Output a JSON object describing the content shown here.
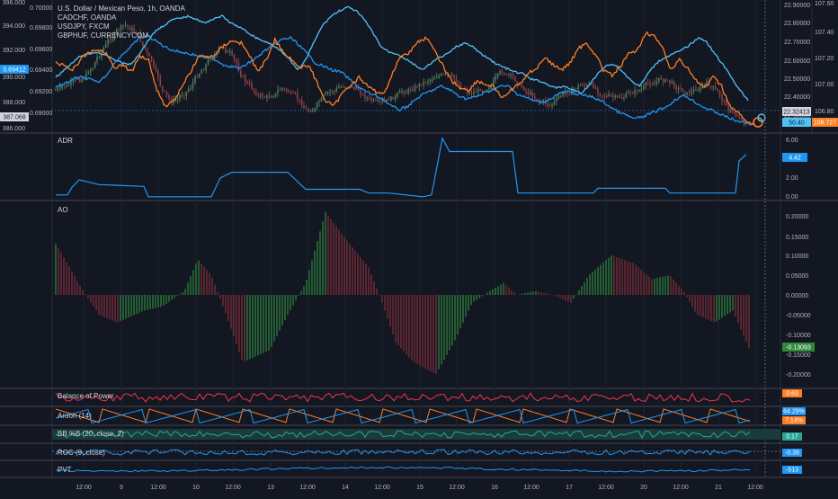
{
  "legend": {
    "lines": [
      "U.S. Dollar / Mexican Peso, 1h, OANDA",
      "CADCHF, OANDA",
      "USDJPY, FXCM",
      "GBPHUF, CURRENCYCOM"
    ]
  },
  "axes": {
    "left_outer": [
      "396.000",
      "394.000",
      "392.000",
      "390.000",
      "388.000",
      "386.000"
    ],
    "left_inner": [
      "0.70000",
      "0.69800",
      "0.69600",
      "0.69400",
      "0.69200",
      "0.69000"
    ],
    "right_inner": [
      "22.90000",
      "22.80000",
      "22.70000",
      "22.60000",
      "22.50000",
      "22.40000",
      "22.30000"
    ],
    "right_outer": [
      "107.60",
      "107.40",
      "107.20",
      "107.00",
      "106.80"
    ],
    "badges": {
      "left_blue": "0.69412",
      "left_gray": "387.068",
      "right_mid": "22.32413",
      "right_low": "50.40",
      "right_orange": "106.727"
    }
  },
  "panes": {
    "adr": {
      "title": "ADR",
      "ticks": [
        "6.00",
        "4.00",
        "2.00",
        "0.00"
      ],
      "badge": "4.42"
    },
    "ao": {
      "title": "AO",
      "ticks": [
        "0.20000",
        "0.15000",
        "0.10000",
        "0.05000",
        "0.00000",
        "-0.05000",
        "-0.10000",
        "-0.15000",
        "-0.20000"
      ],
      "badge": "-0.13093"
    },
    "bop": {
      "title": "Balance of Power",
      "badge": "0.63"
    },
    "aroon": {
      "title": "Aroon (14)",
      "badge_up": "64.29%",
      "badge_down": "7.14%"
    },
    "bbpb": {
      "title": "BB %B (20, close, 2)",
      "badge": "0.17"
    },
    "roc": {
      "title": "ROC (9, close)",
      "badge": "-0.36"
    },
    "pvt": {
      "title": "PVT",
      "badge": "-513"
    }
  },
  "time_axis": {
    "labels": [
      "12:00",
      "9",
      "12:00",
      "10",
      "12:00",
      "13",
      "12:00",
      "14",
      "12:00",
      "15",
      "12:00",
      "16",
      "12:00",
      "17",
      "12:00",
      "20",
      "12:00",
      "21",
      "12:00"
    ]
  },
  "colors": {
    "background": "#131722",
    "blue": "#2196f3",
    "cyan": "#4fc3f7",
    "orange": "#ff7f24",
    "red": "#f23645",
    "green": "#2f8a3c",
    "teal": "#26a69a"
  },
  "chart_data": {
    "type": "line",
    "series": [
      {
        "name": "U.S. Dollar / Mexican Peso, 1h, OANDA",
        "values_note": "candles"
      },
      {
        "name": "CADCHF, OANDA"
      },
      {
        "name": "USDJPY, FXCM"
      },
      {
        "name": "GBPHUF, CURRENCYCOM"
      }
    ],
    "ao_last": -0.13093,
    "adr_last": 4.42
  }
}
